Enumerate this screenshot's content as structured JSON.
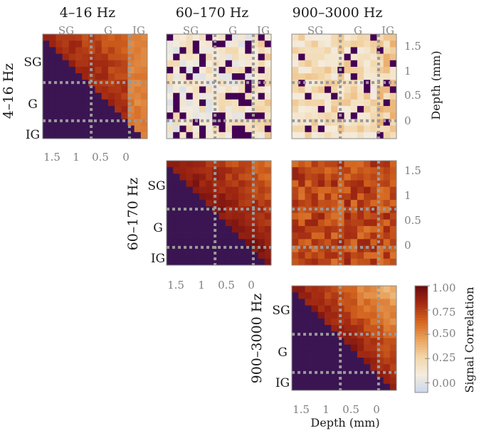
{
  "chart_data": {
    "type": "heatmap",
    "colormap": [
      "#440154",
      "#c9d8ee",
      "#f5ecdd",
      "#f2d6a9",
      "#e9a25a",
      "#d3641e",
      "#a32a12",
      "#6b0a10"
    ],
    "lower_triangle_color": "#3b1552",
    "col_titles": [
      "4–16 Hz",
      "60–170 Hz",
      "900–3000 Hz"
    ],
    "row_titles": [
      "4–16 Hz",
      "60–170 Hz",
      "900–3000 Hz"
    ],
    "layer_labels": [
      "SG",
      "G",
      "IG"
    ],
    "depth_ticks": [
      "1.5",
      "1",
      "0.5",
      "0"
    ],
    "depth_values": [
      1.5,
      1,
      0.5,
      0
    ],
    "depth_range": [
      1.7,
      -0.35
    ],
    "layer_boundaries": [
      0.75,
      0
    ],
    "xlabel": "Depth (mm)",
    "ylabel": "Depth (mm)",
    "colorbar": {
      "label": "Signal Correlation",
      "ticks": [
        "1.00",
        "0.75",
        "0.50",
        "0.25",
        "0.00"
      ],
      "tick_values": [
        1.0,
        0.75,
        0.5,
        0.25,
        0.0
      ],
      "range": [
        -0.1,
        1.0
      ]
    },
    "panels": [
      {
        "row": 0,
        "col": 0,
        "kind": "auto",
        "summary": {
          "near_diagonal": 0.85,
          "far": 0.55,
          "deep_band": 0.4
        }
      },
      {
        "row": 0,
        "col": 1,
        "kind": "cross",
        "summary": {
          "mean": 0.12,
          "masked_fraction": 0.18
        }
      },
      {
        "row": 0,
        "col": 2,
        "kind": "cross",
        "summary": {
          "mean": 0.2,
          "masked_fraction": 0.1
        }
      },
      {
        "row": 1,
        "col": 1,
        "kind": "auto",
        "summary": {
          "near_diagonal": 0.92,
          "far": 0.6
        }
      },
      {
        "row": 1,
        "col": 2,
        "kind": "cross",
        "summary": {
          "mean": 0.72
        }
      },
      {
        "row": 2,
        "col": 2,
        "kind": "auto",
        "summary": {
          "near_diagonal": 0.88,
          "far": 0.35
        }
      }
    ]
  }
}
